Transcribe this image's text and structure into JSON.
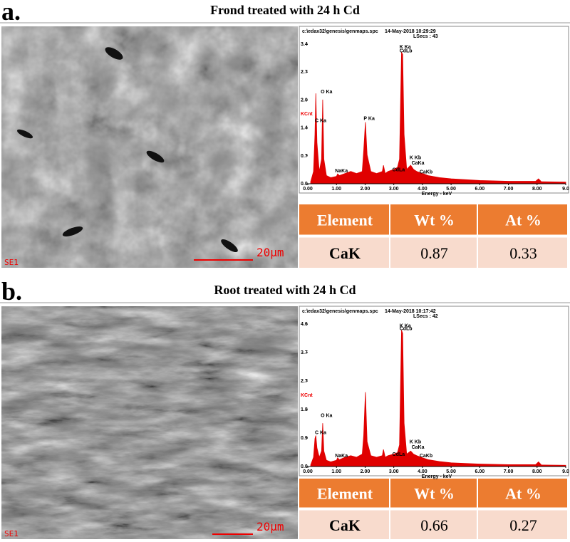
{
  "panels": [
    {
      "label": "a.",
      "title": "Frond treated with 24 h Cd",
      "image": {
        "detector": "SE1",
        "scale": "20μm"
      },
      "table": {
        "header": [
          "Element",
          "Wt %",
          "At %"
        ],
        "rows": [
          [
            "CaK",
            "0.87",
            "0.33"
          ]
        ]
      }
    },
    {
      "label": "b.",
      "title": "Root treated with 24 h Cd",
      "image": {
        "detector": "SE1",
        "scale": "20μm"
      },
      "table": {
        "header": [
          "Element",
          "Wt %",
          "At %"
        ],
        "rows": [
          [
            "CaK",
            "0.66",
            "0.27"
          ]
        ]
      }
    }
  ],
  "chart_data": [
    {
      "type": "area",
      "file": "c:\\edax32\\genesis\\genmaps.spc",
      "timestamp": "14-May-2018 10:29:29",
      "live_time": "LSecs : 43",
      "y_label": "KCnt",
      "x_label": "Energy - keV",
      "color": "#e00000",
      "xlim": [
        0,
        9
      ],
      "ylim": [
        0,
        3.4
      ],
      "xticks": [
        {
          "value": 0,
          "label": "0.00"
        },
        {
          "value": 1,
          "label": "1.00"
        },
        {
          "value": 2,
          "label": "2.00"
        },
        {
          "value": 3,
          "label": "3.00"
        },
        {
          "value": 4,
          "label": "4.00"
        },
        {
          "value": 5,
          "label": "5.00"
        },
        {
          "value": 6,
          "label": "6.00"
        },
        {
          "value": 7,
          "label": "7.00"
        },
        {
          "value": 8,
          "label": "8.00"
        },
        {
          "value": 9,
          "label": "9.0"
        }
      ],
      "yticks": [
        {
          "value": 0,
          "label": "0.0"
        },
        {
          "value": 0.68,
          "label": "0.7"
        },
        {
          "value": 1.36,
          "label": "1.4"
        },
        {
          "value": 2.04,
          "label": "2.0"
        },
        {
          "value": 2.72,
          "label": "2.7"
        },
        {
          "value": 3.4,
          "label": "3.4"
        }
      ],
      "x": [
        0.1,
        0.2,
        0.25,
        0.28,
        0.32,
        0.4,
        0.48,
        0.52,
        0.56,
        0.65,
        0.8,
        1.0,
        1.04,
        1.1,
        1.3,
        1.5,
        1.7,
        1.9,
        1.95,
        2.01,
        2.07,
        2.2,
        2.4,
        2.6,
        2.64,
        2.7,
        2.8,
        3.0,
        3.13,
        3.2,
        3.27,
        3.31,
        3.36,
        3.45,
        3.59,
        3.69,
        3.8,
        4.01,
        4.2,
        4.6,
        5.0,
        6.0,
        7.0,
        7.95,
        8.05,
        8.15,
        9.0
      ],
      "values": [
        0.05,
        0.3,
        1.2,
        2.2,
        1.0,
        0.3,
        0.6,
        2.05,
        0.6,
        0.2,
        0.15,
        0.18,
        0.24,
        0.2,
        0.25,
        0.3,
        0.25,
        0.3,
        0.8,
        1.5,
        0.7,
        0.3,
        0.25,
        0.3,
        0.45,
        0.25,
        0.3,
        0.35,
        0.4,
        0.6,
        3.2,
        3.15,
        1.2,
        0.35,
        0.45,
        0.35,
        0.3,
        0.25,
        0.2,
        0.15,
        0.12,
        0.08,
        0.06,
        0.06,
        0.12,
        0.05,
        0.04
      ],
      "annotations": [
        {
          "text": "C Ka",
          "x": 0.25,
          "y": 1.5
        },
        {
          "text": "O Ka",
          "x": 0.45,
          "y": 2.2
        },
        {
          "text": "NaKa",
          "x": 0.95,
          "y": 0.28
        },
        {
          "text": "P Ka",
          "x": 1.95,
          "y": 1.55
        },
        {
          "text": "K Ka",
          "x": 3.2,
          "y": 3.3
        },
        {
          "text": "CdLb",
          "x": 3.2,
          "y": 3.2
        },
        {
          "text": "K Kb",
          "x": 3.55,
          "y": 0.6
        },
        {
          "text": "CaKa",
          "x": 3.62,
          "y": 0.47
        },
        {
          "text": "CdLa",
          "x": 2.95,
          "y": 0.3
        },
        {
          "text": "CaKb",
          "x": 3.9,
          "y": 0.25
        }
      ]
    },
    {
      "type": "area",
      "file": "c:\\edax32\\genesis\\genmaps.spc",
      "timestamp": "14-May-2018 10:17:42",
      "live_time": "LSecs : 42",
      "y_label": "KCnt",
      "x_label": "Energy - keV",
      "color": "#e00000",
      "xlim": [
        0,
        9
      ],
      "ylim": [
        0,
        4.6
      ],
      "xticks": [
        {
          "value": 0,
          "label": "0.00"
        },
        {
          "value": 1,
          "label": "1.00"
        },
        {
          "value": 2,
          "label": "2.00"
        },
        {
          "value": 3,
          "label": "3.00"
        },
        {
          "value": 4,
          "label": "4.00"
        },
        {
          "value": 5,
          "label": "5.00"
        },
        {
          "value": 6,
          "label": "6.00"
        },
        {
          "value": 7,
          "label": "7.00"
        },
        {
          "value": 8,
          "label": "8.00"
        },
        {
          "value": 9,
          "label": "9.0"
        }
      ],
      "yticks": [
        {
          "value": 0,
          "label": "0.0"
        },
        {
          "value": 0.92,
          "label": "0.9"
        },
        {
          "value": 1.84,
          "label": "1.8"
        },
        {
          "value": 2.76,
          "label": "2.7"
        },
        {
          "value": 3.68,
          "label": "3.7"
        },
        {
          "value": 4.6,
          "label": "4.6"
        }
      ],
      "x": [
        0.1,
        0.2,
        0.25,
        0.28,
        0.32,
        0.4,
        0.48,
        0.52,
        0.56,
        0.65,
        0.8,
        1.0,
        1.04,
        1.1,
        1.3,
        1.5,
        1.7,
        1.9,
        1.95,
        2.01,
        2.07,
        2.2,
        2.4,
        2.6,
        2.64,
        2.7,
        2.8,
        3.0,
        3.13,
        3.2,
        3.27,
        3.31,
        3.36,
        3.45,
        3.59,
        3.69,
        3.8,
        4.01,
        4.2,
        4.6,
        5.0,
        6.0,
        7.0,
        7.95,
        8.05,
        8.15,
        9.0
      ],
      "values": [
        0.05,
        0.3,
        0.9,
        1.0,
        0.6,
        0.3,
        0.5,
        1.4,
        0.5,
        0.2,
        0.15,
        0.2,
        0.28,
        0.22,
        0.3,
        0.35,
        0.3,
        0.4,
        1.0,
        2.4,
        0.8,
        0.35,
        0.3,
        0.35,
        0.55,
        0.3,
        0.35,
        0.4,
        0.45,
        0.7,
        4.4,
        4.3,
        1.4,
        0.4,
        0.5,
        0.4,
        0.35,
        0.28,
        0.22,
        0.16,
        0.12,
        0.08,
        0.06,
        0.06,
        0.15,
        0.05,
        0.04
      ],
      "annotations": [
        {
          "text": "C Ka",
          "x": 0.25,
          "y": 1.05
        },
        {
          "text": "O Ka",
          "x": 0.45,
          "y": 1.6
        },
        {
          "text": "NaKa",
          "x": 0.95,
          "y": 0.3
        },
        {
          "text": "K Ka",
          "x": 3.2,
          "y": 4.5
        },
        {
          "text": "CdLb",
          "x": 3.2,
          "y": 4.4
        },
        {
          "text": "K Kb",
          "x": 3.55,
          "y": 0.75
        },
        {
          "text": "CaKa",
          "x": 3.62,
          "y": 0.58
        },
        {
          "text": "CdLa",
          "x": 2.95,
          "y": 0.35
        },
        {
          "text": "CaKb",
          "x": 3.9,
          "y": 0.3
        }
      ]
    }
  ]
}
